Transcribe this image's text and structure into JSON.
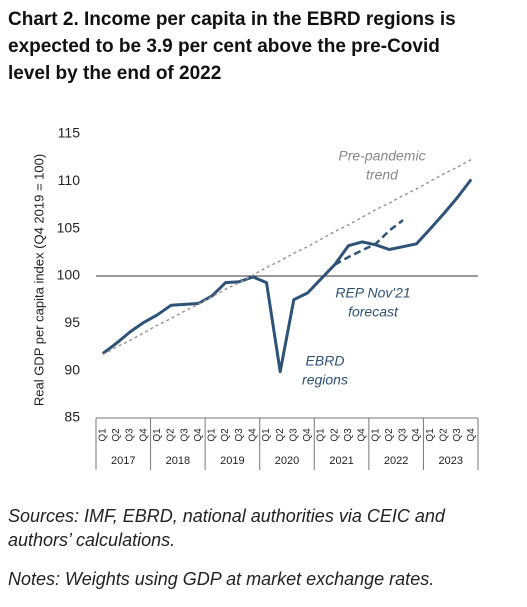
{
  "chart_data": {
    "type": "line",
    "title": [
      "Chart 2. Income per capita in the EBRD regions is",
      "expected to be 3.9 per cent above the pre-Covid",
      "level by the end of 2022"
    ],
    "y_label": "Real GDP per capita index (Q4 2019 = 100)",
    "categories": [
      "Q1",
      "Q2",
      "Q3",
      "Q4",
      "Q1",
      "Q2",
      "Q3",
      "Q4",
      "Q1",
      "Q2",
      "Q3",
      "Q4",
      "Q1",
      "Q2",
      "Q3",
      "Q4",
      "Q1",
      "Q2",
      "Q3",
      "Q4",
      "Q1",
      "Q2",
      "Q3",
      "Q4",
      "Q1",
      "Q2",
      "Q3",
      "Q4"
    ],
    "year_groups": [
      "2017",
      "2018",
      "2019",
      "2020",
      "2021",
      "2022",
      "2023"
    ],
    "series": [
      {
        "name": "EBRD regions",
        "color": "#2e5378",
        "style": "solid",
        "values": [
          91.8,
          92.9,
          94.1,
          95.1,
          95.9,
          96.9,
          97.0,
          97.1,
          97.9,
          99.3,
          99.4,
          99.9,
          99.3,
          89.9,
          97.5,
          98.2,
          99.7,
          101.2,
          103.2,
          103.6,
          103.3,
          102.8,
          103.1,
          103.4,
          105.0,
          106.6,
          108.3,
          110.2
        ]
      },
      {
        "name": "REP Nov'21 forecast",
        "color": "#2e5378",
        "style": "dashed",
        "values": [
          null,
          null,
          null,
          null,
          null,
          null,
          null,
          null,
          null,
          null,
          null,
          null,
          null,
          null,
          null,
          null,
          null,
          101.2,
          102.0,
          102.7,
          103.4,
          104.8,
          105.9,
          null,
          null,
          null,
          null,
          null
        ]
      },
      {
        "name": "Pre-pandemic trend",
        "color": "#999999",
        "style": "dotted",
        "values": [
          91.7,
          92.5,
          93.2,
          94.0,
          94.8,
          95.5,
          96.3,
          97.0,
          97.8,
          98.6,
          99.3,
          100.1,
          100.9,
          101.6,
          102.4,
          103.1,
          103.9,
          104.7,
          105.4,
          106.2,
          107.0,
          107.7,
          108.5,
          109.2,
          110.0,
          110.8,
          111.5,
          112.3
        ]
      }
    ],
    "annotations": [
      [
        "Pre-pandemic",
        "trend"
      ],
      [
        "REP Nov'21",
        "forecast"
      ],
      [
        "EBRD",
        "regions"
      ]
    ],
    "reference_line": 100,
    "ylim": [
      85,
      115
    ],
    "yticks": [
      85,
      90,
      95,
      100,
      105,
      110,
      115
    ],
    "grid": false
  },
  "sources": [
    "Sources: IMF, EBRD, national authorities via CEIC and",
    "authors’ calculations."
  ],
  "notes": "Notes: Weights using GDP at market exchange rates."
}
